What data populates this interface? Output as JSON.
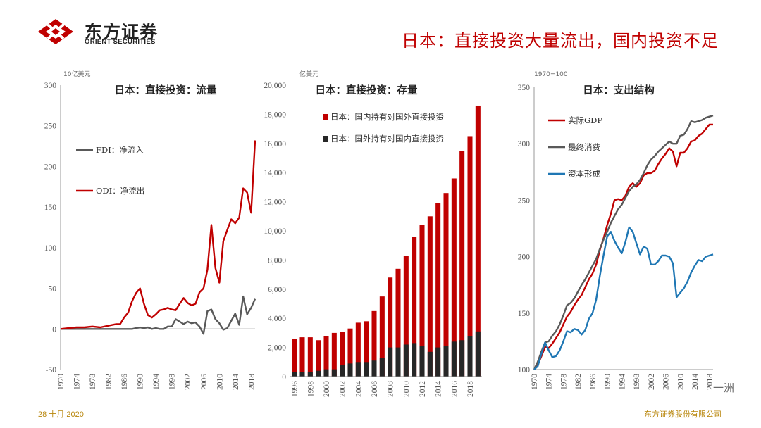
{
  "header": {
    "logo_cn": "东方证券",
    "logo_en": "ORIENT SECURITIES",
    "slide_title": "日本：直接投资大量流出，国内投资不足"
  },
  "footer": {
    "date": "28 十月 2020",
    "company": "东方证券股份有限公司",
    "watermark": "一洲"
  },
  "colors": {
    "red": "#c00000",
    "gray": "#595959",
    "black": "#262626",
    "blue": "#1f77b4"
  },
  "chart_data": [
    {
      "type": "line",
      "title": "日本：直接投资：流量",
      "unit": "10亿美元",
      "ylim": [
        -50,
        300
      ],
      "yticks": [
        -50,
        0,
        50,
        100,
        150,
        200,
        250,
        300
      ],
      "xticks": [
        1970,
        1974,
        1978,
        1982,
        1986,
        1990,
        1994,
        1998,
        2002,
        2006,
        2010,
        2014,
        2018
      ],
      "xlim": [
        1970,
        2019
      ],
      "series": [
        {
          "name": "FDI：净流入",
          "color": "#595959",
          "x": [
            1970,
            1972,
            1974,
            1976,
            1978,
            1980,
            1982,
            1984,
            1986,
            1988,
            1989,
            1990,
            1991,
            1992,
            1993,
            1994,
            1995,
            1996,
            1997,
            1998,
            1999,
            2000,
            2001,
            2002,
            2003,
            2004,
            2005,
            2006,
            2007,
            2008,
            2009,
            2010,
            2011,
            2012,
            2013,
            2014,
            2015,
            2016,
            2017,
            2018,
            2019
          ],
          "values": [
            0,
            0,
            0,
            0,
            0,
            0,
            0,
            0,
            0,
            0,
            1,
            2,
            1,
            2,
            0,
            1,
            0,
            0,
            3,
            3,
            12,
            9,
            6,
            9,
            7,
            8,
            3,
            -6,
            22,
            24,
            12,
            7,
            -1,
            1,
            10,
            19,
            5,
            40,
            18,
            26,
            37
          ]
        },
        {
          "name": "ODI：净流出",
          "color": "#c00000",
          "x": [
            1970,
            1972,
            1974,
            1976,
            1978,
            1980,
            1982,
            1984,
            1985,
            1986,
            1987,
            1988,
            1989,
            1990,
            1991,
            1992,
            1993,
            1994,
            1995,
            1996,
            1997,
            1998,
            1999,
            2000,
            2001,
            2002,
            2003,
            2004,
            2005,
            2006,
            2007,
            2008,
            2009,
            2010,
            2011,
            2012,
            2013,
            2014,
            2015,
            2016,
            2017,
            2018,
            2019
          ],
          "values": [
            0,
            1,
            2,
            2,
            3,
            2,
            4,
            6,
            6,
            14,
            20,
            34,
            44,
            50,
            31,
            17,
            14,
            18,
            23,
            24,
            26,
            24,
            23,
            31,
            38,
            32,
            29,
            31,
            45,
            50,
            73,
            128,
            75,
            57,
            108,
            122,
            135,
            130,
            137,
            173,
            168,
            143,
            232
          ]
        }
      ]
    },
    {
      "type": "bar",
      "title": "日本：直接投资：存量",
      "unit": "亿美元",
      "ylim": [
        0,
        20000
      ],
      "yticks": [
        0,
        2000,
        4000,
        6000,
        8000,
        10000,
        12000,
        14000,
        16000,
        18000,
        20000
      ],
      "ytick_labels": [
        "0",
        "2,000",
        "4,000",
        "6,000",
        "8,000",
        "10,000",
        "12,000",
        "14,000",
        "16,000",
        "18,000",
        "20,000"
      ],
      "xticks": [
        "1996",
        "1998",
        "2000",
        "2002",
        "2004",
        "2006",
        "2008",
        "2010",
        "2012",
        "2014",
        "2016",
        "2018"
      ],
      "categories": [
        "1996",
        "1997",
        "1998",
        "1999",
        "2000",
        "2001",
        "2002",
        "2003",
        "2004",
        "2005",
        "2006",
        "2007",
        "2008",
        "2009",
        "2010",
        "2011",
        "2012",
        "2013",
        "2014",
        "2015",
        "2016",
        "2017",
        "2018",
        "2019"
      ],
      "series": [
        {
          "name": "日本：国内持有对国外直接投资",
          "color": "#c00000",
          "values": [
            2600,
            2700,
            2700,
            2500,
            2800,
            3000,
            3050,
            3300,
            3700,
            3800,
            4500,
            5500,
            6800,
            7400,
            8300,
            9600,
            10400,
            11000,
            11900,
            12600,
            13600,
            15500,
            16500,
            18600
          ]
        },
        {
          "name": "日本：国外持有对国内直接投资",
          "color": "#262626",
          "values": [
            300,
            300,
            300,
            400,
            500,
            500,
            800,
            900,
            1000,
            1000,
            1100,
            1300,
            2000,
            2000,
            2200,
            2300,
            2100,
            1700,
            2000,
            2100,
            2400,
            2500,
            2800,
            3100
          ]
        }
      ]
    },
    {
      "type": "line",
      "title": "日本：支出结构",
      "unit": "1970=100",
      "ylim": [
        100,
        350
      ],
      "yticks": [
        100,
        150,
        200,
        250,
        300,
        350
      ],
      "xticks": [
        1970,
        1974,
        1978,
        1982,
        1986,
        1990,
        1994,
        1998,
        2002,
        2006,
        2010,
        2014,
        2018
      ],
      "xlim": [
        1970,
        2019
      ],
      "series": [
        {
          "name": "实际GDP",
          "color": "#c00000",
          "x": [
            1970,
            1971,
            1972,
            1973,
            1974,
            1975,
            1976,
            1977,
            1978,
            1979,
            1980,
            1981,
            1982,
            1983,
            1984,
            1985,
            1986,
            1987,
            1988,
            1989,
            1990,
            1991,
            1992,
            1993,
            1994,
            1995,
            1996,
            1997,
            1998,
            1999,
            2000,
            2001,
            2002,
            2003,
            2004,
            2005,
            2006,
            2007,
            2008,
            2009,
            2010,
            2011,
            2012,
            2013,
            2014,
            2015,
            2016,
            2017,
            2018,
            2019
          ],
          "values": [
            100,
            104,
            112,
            120,
            119,
            123,
            128,
            133,
            140,
            147,
            151,
            157,
            162,
            166,
            173,
            180,
            185,
            193,
            206,
            216,
            228,
            238,
            250,
            251,
            250,
            254,
            262,
            265,
            262,
            265,
            272,
            274,
            274,
            276,
            282,
            287,
            291,
            296,
            293,
            280,
            292,
            292,
            296,
            302,
            303,
            307,
            309,
            313,
            317,
            317
          ]
        },
        {
          "name": "最终消费",
          "color": "#595959",
          "x": [
            1970,
            1971,
            1972,
            1973,
            1974,
            1975,
            1976,
            1977,
            1978,
            1979,
            1980,
            1981,
            1982,
            1983,
            1984,
            1985,
            1986,
            1987,
            1988,
            1989,
            1990,
            1991,
            1992,
            1993,
            1994,
            1995,
            1996,
            1997,
            1998,
            1999,
            2000,
            2001,
            2002,
            2003,
            2004,
            2005,
            2006,
            2007,
            2008,
            2009,
            2010,
            2011,
            2012,
            2013,
            2014,
            2015,
            2016,
            2017,
            2018,
            2019
          ],
          "values": [
            100,
            107,
            116,
            124,
            125,
            130,
            134,
            140,
            148,
            157,
            159,
            163,
            169,
            175,
            180,
            186,
            192,
            198,
            207,
            215,
            222,
            230,
            236,
            242,
            246,
            252,
            258,
            262,
            264,
            268,
            274,
            281,
            286,
            289,
            293,
            296,
            299,
            302,
            300,
            300,
            307,
            308,
            313,
            320,
            319,
            320,
            321,
            323,
            324,
            325
          ]
        },
        {
          "name": "资本形成",
          "color": "#1f77b4",
          "x": [
            1970,
            1971,
            1972,
            1973,
            1974,
            1975,
            1976,
            1977,
            1978,
            1979,
            1980,
            1981,
            1982,
            1983,
            1984,
            1985,
            1986,
            1987,
            1988,
            1989,
            1990,
            1991,
            1992,
            1993,
            1994,
            1995,
            1996,
            1997,
            1998,
            1999,
            2000,
            2001,
            2002,
            2003,
            2004,
            2005,
            2006,
            2007,
            2008,
            2009,
            2010,
            2011,
            2012,
            2013,
            2014,
            2015,
            2016,
            2017,
            2018,
            2019
          ],
          "values": [
            100,
            103,
            114,
            124,
            117,
            111,
            112,
            117,
            125,
            134,
            133,
            136,
            135,
            131,
            135,
            145,
            150,
            162,
            183,
            201,
            218,
            222,
            214,
            208,
            203,
            213,
            226,
            222,
            212,
            202,
            209,
            207,
            193,
            193,
            196,
            201,
            201,
            200,
            194,
            164,
            168,
            172,
            178,
            186,
            192,
            197,
            196,
            200,
            201,
            202
          ]
        }
      ]
    }
  ]
}
